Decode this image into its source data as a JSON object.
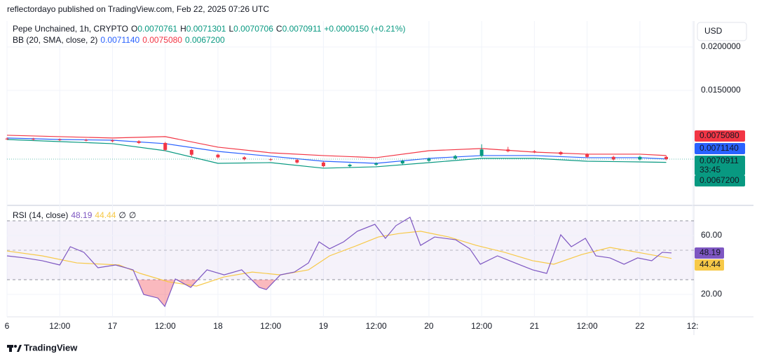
{
  "header": {
    "published": "reflectordayo published on TradingView.com, Feb 22, 2025 07:26 UTC"
  },
  "currency": "USD",
  "footer": {
    "brand": "TradingView"
  },
  "chart_data": [
    {
      "type": "candlestick",
      "title": "Pepe Unchained, 1h, CRYPTO",
      "ohlc_legend": {
        "o_label": "O",
        "open": "0.0070761",
        "h_label": "H",
        "high": "0.0071301",
        "l_label": "L",
        "low": "0.0070706",
        "c_label": "C",
        "close": "0.0070911",
        "change": "+0.0000150 (+0.21%)"
      },
      "colors": {
        "up": "#089981",
        "down": "#f23645"
      },
      "x": [
        0,
        6,
        12,
        18,
        24,
        30,
        36,
        42,
        48,
        54,
        60,
        66,
        72,
        78,
        84,
        90,
        96,
        102,
        108,
        114,
        120,
        126,
        132,
        138,
        144,
        150
      ],
      "open": [
        0.00945,
        0.00942,
        0.00935,
        0.0093,
        0.00925,
        0.00915,
        0.00895,
        0.00815,
        0.0076,
        0.0073,
        0.00708,
        0.007,
        0.0067,
        0.00628,
        0.00645,
        0.0066,
        0.0069,
        0.00715,
        0.00745,
        0.0082,
        0.008,
        0.0079,
        0.00765,
        0.00735,
        0.00705,
        0.00735
      ],
      "high": [
        0.00957,
        0.00954,
        0.00947,
        0.00942,
        0.00937,
        0.00927,
        0.00907,
        0.00827,
        0.00772,
        0.00742,
        0.0072,
        0.00712,
        0.00682,
        0.00657,
        0.00672,
        0.00702,
        0.00727,
        0.00757,
        0.0088,
        0.0085,
        0.00812,
        0.00802,
        0.00777,
        0.00747,
        0.00747,
        0.00747
      ],
      "low": [
        0.0093,
        0.00923,
        0.00918,
        0.00913,
        0.00903,
        0.00883,
        0.00803,
        0.0074,
        0.00718,
        0.00696,
        0.00688,
        0.00658,
        0.00616,
        0.00616,
        0.00633,
        0.00648,
        0.00678,
        0.00703,
        0.00733,
        0.00788,
        0.00778,
        0.00753,
        0.00723,
        0.00693,
        0.00693,
        0.00697
      ],
      "close": [
        0.00942,
        0.00935,
        0.0093,
        0.00925,
        0.00915,
        0.00895,
        0.00815,
        0.0076,
        0.0073,
        0.00708,
        0.007,
        0.0067,
        0.00628,
        0.00645,
        0.0066,
        0.0069,
        0.00715,
        0.00745,
        0.0082,
        0.008,
        0.0079,
        0.00765,
        0.00735,
        0.00705,
        0.00735,
        0.0070911
      ],
      "overlay": {
        "title": "BB (20, SMA, close, 2)",
        "x": [
          0,
          12,
          24,
          36,
          48,
          60,
          72,
          84,
          96,
          108,
          120,
          132,
          144,
          150
        ],
        "series": [
          {
            "color": "#2962ff",
            "values": [
              0.00952,
              0.00935,
              0.00927,
              0.00887,
              0.00798,
              0.00742,
              0.00685,
              0.00661,
              0.00718,
              0.0075,
              0.0075,
              0.00726,
              0.00726,
              0.007114
            ],
            "last_label": "0.0071140"
          },
          {
            "color": "#f23645",
            "values": [
              0.00984,
              0.00968,
              0.00952,
              0.00968,
              0.00847,
              0.00782,
              0.0075,
              0.00726,
              0.00806,
              0.00831,
              0.0079,
              0.00766,
              0.00766,
              0.007508
            ],
            "last_label": "0.0075080"
          },
          {
            "color": "#089981",
            "values": [
              0.00935,
              0.00911,
              0.00887,
              0.00806,
              0.00661,
              0.00669,
              0.00605,
              0.00621,
              0.00669,
              0.00718,
              0.00718,
              0.00685,
              0.00677,
              0.00672
            ],
            "last_label": "0.0067200"
          }
        ]
      },
      "tags": [
        {
          "label": "0.0075080",
          "color": "#f23645"
        },
        {
          "label": "0.0071140",
          "color": "#2962ff"
        },
        {
          "label": "0.0070911",
          "sub": "33:45",
          "color": "#089981"
        },
        {
          "label": "0.0067200",
          "color": "#089981"
        }
      ],
      "xlim": [
        0,
        156.3
      ],
      "xticks": [
        {
          "value": 0,
          "label": "6"
        },
        {
          "value": 12,
          "label": "12:00"
        },
        {
          "value": 24,
          "label": "17"
        },
        {
          "value": 36,
          "label": "12:00"
        },
        {
          "value": 48,
          "label": "18"
        },
        {
          "value": 60,
          "label": "12:00"
        },
        {
          "value": 72,
          "label": "19"
        },
        {
          "value": 84,
          "label": "12:00"
        },
        {
          "value": 96,
          "label": "20"
        },
        {
          "value": 108,
          "label": "12:00"
        },
        {
          "value": 120,
          "label": "21"
        },
        {
          "value": 132,
          "label": "12:00"
        },
        {
          "value": 144,
          "label": "22"
        },
        {
          "value": 156,
          "label": "12:"
        }
      ],
      "ylim": [
        0.00185,
        0.02298
      ],
      "yticks": [
        {
          "value": 0.015,
          "label": "0.0150000"
        },
        {
          "value": 0.02,
          "label": "0.0200000"
        }
      ],
      "grid": true
    },
    {
      "type": "line",
      "title": "RSI (14, close)",
      "legend_values": [
        "48.19",
        "44.44",
        "∅",
        "∅"
      ],
      "bands": {
        "upper": 70,
        "middle": 50,
        "lower": 30
      },
      "series": [
        {
          "color": "#7e57c2",
          "tag": "48.19",
          "x": [
            0,
            4,
            8,
            12,
            14.4,
            17.5,
            20.7,
            24.7,
            28.7,
            31.1,
            34.3,
            35.9,
            38.3,
            41.8,
            45.5,
            49.4,
            53.4,
            57.4,
            59,
            62.2,
            65.4,
            68.6,
            71,
            73.4,
            76.6,
            79.7,
            83.7,
            86.1,
            88.5,
            91.7,
            94.1,
            97.3,
            102.1,
            105.3,
            107.7,
            111.6,
            115.6,
            119.6,
            122.8,
            126,
            128.4,
            131.6,
            134,
            137.2,
            140.4,
            143.5,
            146.7,
            149.1,
            151.2
          ],
          "values": [
            46.2,
            44.8,
            42.9,
            40,
            52.4,
            48.6,
            38.1,
            40,
            36.7,
            20,
            17.6,
            11.9,
            30.5,
            24.8,
            36.7,
            33.3,
            36.7,
            24.8,
            23.3,
            33.3,
            35.2,
            41.4,
            55.7,
            51,
            55.7,
            62.9,
            67.6,
            58.1,
            66.7,
            72.4,
            53.3,
            59,
            57.1,
            51,
            40.5,
            46.2,
            41.4,
            36.7,
            34.3,
            60.5,
            52.4,
            58.1,
            46.2,
            44.8,
            40.5,
            44.8,
            42.9,
            48.6,
            48.19
          ]
        },
        {
          "color": "#f7c948",
          "tag": "44.44",
          "x": [
            0,
            8,
            15.9,
            25.5,
            30.3,
            36.7,
            43.1,
            49.4,
            55.8,
            62.2,
            68.6,
            73.4,
            79.7,
            84.5,
            89.3,
            94.1,
            100.5,
            106.8,
            113.2,
            119.6,
            124.4,
            130.8,
            137.2,
            143.5,
            151.2
          ],
          "values": [
            49.5,
            46.2,
            41.4,
            40,
            34.3,
            28.6,
            25.7,
            31.9,
            35.2,
            33.3,
            36.7,
            46.2,
            53.3,
            59,
            61.4,
            62.9,
            59,
            53.3,
            48.6,
            42.9,
            40.5,
            47.1,
            51.9,
            48.6,
            44.44
          ]
        }
      ],
      "xlim": [
        0,
        156.3
      ],
      "ylim": [
        4.8,
        79.5
      ],
      "yticks": [
        {
          "value": 20,
          "label": "20.00"
        },
        {
          "value": 60,
          "label": "60.00"
        }
      ]
    }
  ]
}
